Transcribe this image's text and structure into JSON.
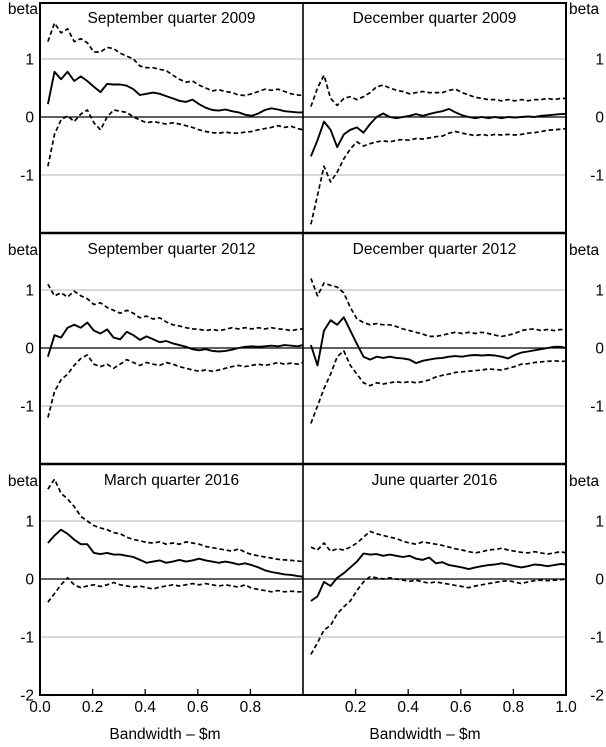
{
  "figure": {
    "y_axis": {
      "label": "beta",
      "tick_labels": [
        "1",
        "0",
        "-1"
      ],
      "bottom_tick_label": "-2"
    },
    "x_axis": {
      "label": "Bandwidth – $m",
      "tick_labels_left": [
        "0.0",
        "0.2",
        "0.4",
        "0.6",
        "0.8"
      ],
      "tick_labels_right": [
        "0.2",
        "0.4",
        "0.6",
        "0.8",
        "1.0"
      ]
    },
    "colors": {
      "line": "#000000",
      "grid": "#b3b3b3",
      "background": "#ffffff"
    }
  },
  "chart_data": {
    "type": "line",
    "x_label": "Bandwidth – $m",
    "y_label": "beta",
    "xlim": [
      0,
      1
    ],
    "ylim": [
      -2,
      1.95
    ],
    "y_gridlines": [
      1,
      -1
    ],
    "zero_line": 0,
    "grid": "horizontal gridlines at 1 and -1 only",
    "legend_position": "none",
    "x": [
      0.03,
      0.055,
      0.08,
      0.105,
      0.13,
      0.155,
      0.18,
      0.205,
      0.23,
      0.255,
      0.28,
      0.305,
      0.33,
      0.355,
      0.38,
      0.405,
      0.43,
      0.455,
      0.48,
      0.505,
      0.53,
      0.555,
      0.58,
      0.605,
      0.63,
      0.655,
      0.68,
      0.705,
      0.73,
      0.755,
      0.78,
      0.805,
      0.83,
      0.855,
      0.88,
      0.905,
      0.93,
      0.955,
      0.98,
      1.0
    ],
    "panels": [
      {
        "title": "September quarter 2009",
        "series": [
          {
            "name": "beta estimate",
            "style": "solid",
            "values": [
              0.22,
              0.78,
              0.65,
              0.78,
              0.62,
              0.7,
              0.62,
              0.52,
              0.43,
              0.57,
              0.56,
              0.56,
              0.54,
              0.48,
              0.38,
              0.4,
              0.42,
              0.4,
              0.36,
              0.32,
              0.28,
              0.26,
              0.3,
              0.22,
              0.16,
              0.12,
              0.11,
              0.13,
              0.1,
              0.08,
              0.04,
              0.02,
              0.06,
              0.12,
              0.15,
              0.13,
              0.1,
              0.09,
              0.08,
              0.08
            ]
          },
          {
            "name": "upper confidence band",
            "style": "dashed",
            "values": [
              1.3,
              1.62,
              1.45,
              1.52,
              1.3,
              1.35,
              1.28,
              1.12,
              1.12,
              1.2,
              1.18,
              1.1,
              1.05,
              1.0,
              0.88,
              0.85,
              0.85,
              0.82,
              0.8,
              0.72,
              0.65,
              0.6,
              0.62,
              0.55,
              0.5,
              0.45,
              0.47,
              0.44,
              0.42,
              0.38,
              0.37,
              0.4,
              0.44,
              0.48,
              0.46,
              0.48,
              0.44,
              0.4,
              0.38,
              0.37
            ]
          },
          {
            "name": "lower confidence band",
            "style": "dashed",
            "values": [
              -0.85,
              -0.3,
              -0.05,
              0.02,
              -0.08,
              0.05,
              0.12,
              -0.1,
              -0.22,
              0.0,
              0.12,
              0.1,
              0.08,
              0.0,
              -0.05,
              -0.1,
              -0.08,
              -0.1,
              -0.12,
              -0.1,
              -0.12,
              -0.15,
              -0.18,
              -0.22,
              -0.25,
              -0.27,
              -0.28,
              -0.26,
              -0.28,
              -0.28,
              -0.26,
              -0.25,
              -0.22,
              -0.2,
              -0.18,
              -0.15,
              -0.18,
              -0.16,
              -0.2,
              -0.22
            ]
          }
        ]
      },
      {
        "title": "December quarter 2009",
        "series": [
          {
            "name": "beta estimate",
            "style": "solid",
            "values": [
              -0.68,
              -0.4,
              -0.08,
              -0.22,
              -0.52,
              -0.3,
              -0.22,
              -0.18,
              -0.27,
              -0.12,
              0.0,
              0.06,
              0.0,
              -0.02,
              0.0,
              0.02,
              0.05,
              0.02,
              0.05,
              0.08,
              0.1,
              0.14,
              0.08,
              0.03,
              0.0,
              -0.02,
              0.0,
              -0.02,
              0.0,
              -0.02,
              0.0,
              -0.01,
              0.0,
              0.01,
              0.0,
              0.02,
              0.03,
              0.04,
              0.05,
              0.05
            ]
          },
          {
            "name": "upper confidence band",
            "style": "dashed",
            "values": [
              0.18,
              0.5,
              0.72,
              0.32,
              0.2,
              0.32,
              0.35,
              0.3,
              0.35,
              0.42,
              0.52,
              0.55,
              0.5,
              0.46,
              0.44,
              0.4,
              0.42,
              0.44,
              0.42,
              0.42,
              0.42,
              0.46,
              0.48,
              0.42,
              0.38,
              0.34,
              0.32,
              0.3,
              0.3,
              0.28,
              0.3,
              0.28,
              0.3,
              0.28,
              0.3,
              0.3,
              0.32,
              0.3,
              0.32,
              0.32
            ]
          },
          {
            "name": "lower confidence band",
            "style": "dashed",
            "values": [
              -1.85,
              -1.35,
              -0.85,
              -1.12,
              -0.95,
              -0.72,
              -0.55,
              -0.43,
              -0.5,
              -0.46,
              -0.43,
              -0.41,
              -0.43,
              -0.4,
              -0.39,
              -0.4,
              -0.37,
              -0.38,
              -0.36,
              -0.34,
              -0.33,
              -0.28,
              -0.25,
              -0.28,
              -0.3,
              -0.32,
              -0.3,
              -0.32,
              -0.3,
              -0.31,
              -0.3,
              -0.31,
              -0.3,
              -0.28,
              -0.27,
              -0.25,
              -0.23,
              -0.22,
              -0.21,
              -0.2
            ]
          }
        ]
      },
      {
        "title": "September quarter 2012",
        "series": [
          {
            "name": "beta estimate",
            "style": "solid",
            "values": [
              -0.15,
              0.22,
              0.18,
              0.35,
              0.4,
              0.35,
              0.44,
              0.3,
              0.25,
              0.32,
              0.18,
              0.15,
              0.28,
              0.22,
              0.14,
              0.2,
              0.15,
              0.1,
              0.12,
              0.08,
              0.05,
              0.02,
              -0.02,
              -0.04,
              -0.02,
              -0.05,
              -0.06,
              -0.05,
              -0.03,
              0.0,
              0.02,
              0.03,
              0.02,
              0.03,
              0.04,
              0.03,
              0.05,
              0.04,
              0.03,
              0.05
            ]
          },
          {
            "name": "upper confidence band",
            "style": "dashed",
            "values": [
              1.1,
              0.9,
              0.95,
              0.88,
              0.98,
              0.9,
              0.85,
              0.75,
              0.78,
              0.7,
              0.65,
              0.6,
              0.65,
              0.6,
              0.52,
              0.55,
              0.5,
              0.52,
              0.45,
              0.4,
              0.38,
              0.35,
              0.33,
              0.32,
              0.3,
              0.32,
              0.3,
              0.32,
              0.35,
              0.33,
              0.35,
              0.33,
              0.35,
              0.33,
              0.35,
              0.33,
              0.32,
              0.3,
              0.32,
              0.33
            ]
          },
          {
            "name": "lower confidence band",
            "style": "dashed",
            "values": [
              -1.2,
              -0.75,
              -0.55,
              -0.45,
              -0.3,
              -0.18,
              -0.12,
              -0.28,
              -0.32,
              -0.28,
              -0.35,
              -0.28,
              -0.2,
              -0.25,
              -0.3,
              -0.25,
              -0.28,
              -0.3,
              -0.25,
              -0.28,
              -0.32,
              -0.35,
              -0.38,
              -0.4,
              -0.38,
              -0.4,
              -0.38,
              -0.35,
              -0.32,
              -0.3,
              -0.32,
              -0.3,
              -0.28,
              -0.3,
              -0.28,
              -0.25,
              -0.28,
              -0.26,
              -0.28,
              -0.25
            ]
          }
        ]
      },
      {
        "title": "December quarter 2012",
        "series": [
          {
            "name": "beta estimate",
            "style": "solid",
            "values": [
              0.05,
              -0.3,
              0.3,
              0.48,
              0.4,
              0.53,
              0.3,
              0.07,
              -0.15,
              -0.2,
              -0.15,
              -0.17,
              -0.15,
              -0.17,
              -0.18,
              -0.2,
              -0.26,
              -0.22,
              -0.2,
              -0.18,
              -0.17,
              -0.15,
              -0.14,
              -0.15,
              -0.13,
              -0.12,
              -0.13,
              -0.12,
              -0.13,
              -0.15,
              -0.18,
              -0.12,
              -0.08,
              -0.06,
              -0.04,
              -0.02,
              0.0,
              0.02,
              0.02,
              0.0
            ]
          },
          {
            "name": "upper confidence band",
            "style": "dashed",
            "values": [
              1.2,
              0.9,
              1.12,
              1.08,
              1.05,
              0.95,
              0.7,
              0.5,
              0.44,
              0.4,
              0.42,
              0.4,
              0.4,
              0.37,
              0.33,
              0.3,
              0.27,
              0.24,
              0.2,
              0.2,
              0.22,
              0.25,
              0.27,
              0.25,
              0.27,
              0.25,
              0.27,
              0.25,
              0.22,
              0.2,
              0.22,
              0.25,
              0.3,
              0.32,
              0.33,
              0.3,
              0.32,
              0.3,
              0.32,
              0.3
            ]
          },
          {
            "name": "lower confidence band",
            "style": "dashed",
            "values": [
              -1.3,
              -1.0,
              -0.7,
              -0.45,
              -0.15,
              -0.05,
              -0.3,
              -0.45,
              -0.6,
              -0.65,
              -0.6,
              -0.62,
              -0.6,
              -0.58,
              -0.6,
              -0.58,
              -0.6,
              -0.58,
              -0.55,
              -0.5,
              -0.47,
              -0.45,
              -0.42,
              -0.41,
              -0.4,
              -0.39,
              -0.38,
              -0.36,
              -0.37,
              -0.38,
              -0.35,
              -0.32,
              -0.28,
              -0.27,
              -0.25,
              -0.24,
              -0.23,
              -0.22,
              -0.23,
              -0.23
            ]
          }
        ]
      },
      {
        "title": "March quarter 2016",
        "series": [
          {
            "name": "beta estimate",
            "style": "solid",
            "values": [
              0.62,
              0.75,
              0.85,
              0.78,
              0.68,
              0.6,
              0.6,
              0.45,
              0.43,
              0.45,
              0.42,
              0.42,
              0.4,
              0.38,
              0.33,
              0.28,
              0.3,
              0.32,
              0.28,
              0.3,
              0.33,
              0.3,
              0.32,
              0.35,
              0.32,
              0.3,
              0.28,
              0.3,
              0.28,
              0.25,
              0.27,
              0.24,
              0.2,
              0.15,
              0.12,
              0.1,
              0.08,
              0.07,
              0.05,
              0.04
            ]
          },
          {
            "name": "upper confidence band",
            "style": "dashed",
            "values": [
              1.55,
              1.72,
              1.48,
              1.38,
              1.25,
              1.08,
              1.0,
              0.92,
              0.88,
              0.85,
              0.8,
              0.78,
              0.72,
              0.68,
              0.66,
              0.63,
              0.62,
              0.64,
              0.6,
              0.62,
              0.6,
              0.64,
              0.62,
              0.6,
              0.56,
              0.54,
              0.52,
              0.5,
              0.48,
              0.52,
              0.46,
              0.42,
              0.4,
              0.38,
              0.36,
              0.34,
              0.33,
              0.32,
              0.31,
              0.3
            ]
          },
          {
            "name": "lower confidence band",
            "style": "dashed",
            "values": [
              -0.4,
              -0.25,
              -0.1,
              0.02,
              -0.1,
              -0.15,
              -0.12,
              -0.1,
              -0.13,
              -0.1,
              -0.06,
              -0.1,
              -0.12,
              -0.14,
              -0.12,
              -0.15,
              -0.17,
              -0.14,
              -0.12,
              -0.1,
              -0.12,
              -0.1,
              -0.08,
              -0.1,
              -0.08,
              -0.1,
              -0.12,
              -0.1,
              -0.12,
              -0.14,
              -0.1,
              -0.16,
              -0.18,
              -0.2,
              -0.22,
              -0.2,
              -0.22,
              -0.21,
              -0.22,
              -0.22
            ]
          }
        ]
      },
      {
        "title": "June quarter 2016",
        "series": [
          {
            "name": "beta estimate",
            "style": "solid",
            "values": [
              -0.38,
              -0.3,
              -0.05,
              -0.12,
              0.02,
              0.1,
              0.2,
              0.3,
              0.44,
              0.42,
              0.43,
              0.4,
              0.42,
              0.4,
              0.38,
              0.4,
              0.35,
              0.33,
              0.37,
              0.27,
              0.29,
              0.24,
              0.22,
              0.2,
              0.17,
              0.2,
              0.22,
              0.24,
              0.25,
              0.27,
              0.25,
              0.22,
              0.2,
              0.22,
              0.25,
              0.24,
              0.22,
              0.24,
              0.26,
              0.25
            ]
          },
          {
            "name": "upper confidence band",
            "style": "dashed",
            "values": [
              0.55,
              0.5,
              0.62,
              0.48,
              0.52,
              0.5,
              0.55,
              0.62,
              0.72,
              0.82,
              0.78,
              0.75,
              0.72,
              0.7,
              0.65,
              0.62,
              0.6,
              0.64,
              0.62,
              0.6,
              0.58,
              0.55,
              0.52,
              0.5,
              0.47,
              0.45,
              0.47,
              0.5,
              0.51,
              0.53,
              0.5,
              0.48,
              0.46,
              0.45,
              0.47,
              0.45,
              0.43,
              0.45,
              0.47,
              0.45
            ]
          },
          {
            "name": "lower confidence band",
            "style": "dashed",
            "values": [
              -1.3,
              -1.1,
              -0.88,
              -0.8,
              -0.6,
              -0.48,
              -0.38,
              -0.2,
              -0.05,
              0.04,
              0.02,
              0.0,
              0.02,
              0.0,
              -0.02,
              -0.04,
              -0.02,
              -0.05,
              -0.07,
              -0.05,
              -0.07,
              -0.09,
              -0.11,
              -0.13,
              -0.15,
              -0.12,
              -0.1,
              -0.08,
              -0.06,
              -0.04,
              -0.03,
              -0.05,
              -0.08,
              -0.05,
              -0.03,
              -0.02,
              -0.03,
              -0.02,
              -0.01,
              0.0
            ]
          }
        ]
      }
    ]
  }
}
